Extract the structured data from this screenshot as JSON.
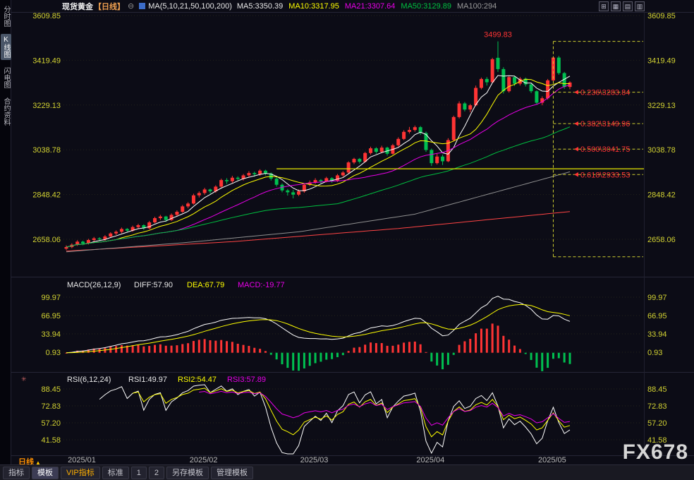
{
  "title_bar": {
    "symbol": "现货黄金",
    "period": "【日线】",
    "ma_summary": "MA(5,10,21,50,100,200)",
    "ma_values": [
      {
        "label": "MA5:3350.39",
        "color": "#e8e8e8"
      },
      {
        "label": "MA10:3317.95",
        "color": "#ffff00"
      },
      {
        "label": "MA21:3307.64",
        "color": "#e800e8"
      },
      {
        "label": "MA50:3129.89",
        "color": "#00c040"
      },
      {
        "label": "MA100:294",
        "color": "#9a9a9a"
      }
    ],
    "window_icons": [
      {
        "name": "layout-single-icon",
        "glyph": "⊞"
      },
      {
        "name": "layout-grid-icon",
        "glyph": "▦"
      },
      {
        "name": "layout-rows-icon",
        "glyph": "▤"
      },
      {
        "name": "layout-columns-icon",
        "glyph": "▥"
      }
    ]
  },
  "sidebar": {
    "items": [
      {
        "label": "分时图",
        "active": false
      },
      {
        "label": "K线图",
        "active": true
      },
      {
        "label": "闪电图",
        "active": false
      },
      {
        "label": "合约资料",
        "active": false
      }
    ]
  },
  "chart_data": {
    "type": "candlestick",
    "symbol": "现货黄金",
    "interval": "日线",
    "price_axis": [
      3609.85,
      3419.49,
      3229.13,
      3038.78,
      2848.42,
      2658.06
    ],
    "up_color": "#ff3434",
    "down_color": "#00c050",
    "months": [
      {
        "label": "2025/01",
        "index": 0
      },
      {
        "label": "2025/02",
        "index": 22
      },
      {
        "label": "2025/03",
        "index": 42
      },
      {
        "label": "2025/04",
        "index": 63
      },
      {
        "label": "2025/05",
        "index": 85
      }
    ],
    "candles": [
      [
        2618,
        2632,
        2612,
        2625
      ],
      [
        2625,
        2641,
        2620,
        2635
      ],
      [
        2635,
        2654,
        2630,
        2648
      ],
      [
        2648,
        2652,
        2633,
        2640
      ],
      [
        2640,
        2660,
        2636,
        2655
      ],
      [
        2655,
        2668,
        2648,
        2662
      ],
      [
        2662,
        2667,
        2650,
        2658
      ],
      [
        2658,
        2676,
        2652,
        2670
      ],
      [
        2670,
        2688,
        2665,
        2683
      ],
      [
        2683,
        2696,
        2676,
        2690
      ],
      [
        2690,
        2708,
        2684,
        2702
      ],
      [
        2702,
        2706,
        2688,
        2695
      ],
      [
        2695,
        2716,
        2690,
        2710
      ],
      [
        2710,
        2724,
        2702,
        2718
      ],
      [
        2718,
        2722,
        2698,
        2705
      ],
      [
        2705,
        2736,
        2700,
        2730
      ],
      [
        2730,
        2754,
        2726,
        2748
      ],
      [
        2748,
        2762,
        2740,
        2755
      ],
      [
        2755,
        2758,
        2732,
        2740
      ],
      [
        2740,
        2768,
        2736,
        2762
      ],
      [
        2762,
        2781,
        2756,
        2775
      ],
      [
        2775,
        2804,
        2770,
        2798
      ],
      [
        2798,
        2816,
        2790,
        2810
      ],
      [
        2810,
        2852,
        2806,
        2845
      ],
      [
        2845,
        2862,
        2836,
        2855
      ],
      [
        2855,
        2877,
        2848,
        2870
      ],
      [
        2870,
        2874,
        2852,
        2862
      ],
      [
        2862,
        2888,
        2856,
        2882
      ],
      [
        2882,
        2916,
        2878,
        2910
      ],
      [
        2910,
        2918,
        2894,
        2905
      ],
      [
        2905,
        2928,
        2898,
        2920
      ],
      [
        2920,
        2926,
        2906,
        2915
      ],
      [
        2915,
        2936,
        2908,
        2930
      ],
      [
        2930,
        2948,
        2922,
        2940
      ],
      [
        2940,
        2946,
        2924,
        2935
      ],
      [
        2935,
        2956,
        2928,
        2950
      ],
      [
        2950,
        2954,
        2930,
        2938
      ],
      [
        2938,
        2942,
        2908,
        2916
      ],
      [
        2916,
        2922,
        2882,
        2890
      ],
      [
        2890,
        2896,
        2858,
        2866
      ],
      [
        2866,
        2872,
        2844,
        2858
      ],
      [
        2858,
        2868,
        2832,
        2848
      ],
      [
        2848,
        2870,
        2842,
        2862
      ],
      [
        2862,
        2896,
        2856,
        2890
      ],
      [
        2890,
        2908,
        2884,
        2900
      ],
      [
        2900,
        2918,
        2894,
        2910
      ],
      [
        2910,
        2914,
        2896,
        2905
      ],
      [
        2905,
        2924,
        2900,
        2918
      ],
      [
        2918,
        2922,
        2898,
        2908
      ],
      [
        2908,
        2936,
        2902,
        2930
      ],
      [
        2930,
        2948,
        2924,
        2942
      ],
      [
        2942,
        2990,
        2938,
        2985
      ],
      [
        2985,
        3005,
        2978,
        3000
      ],
      [
        3000,
        3004,
        2980,
        2988
      ],
      [
        2988,
        3030,
        2984,
        3025
      ],
      [
        3025,
        3052,
        3018,
        3045
      ],
      [
        3045,
        3050,
        3022,
        3030
      ],
      [
        3030,
        3056,
        3024,
        3048
      ],
      [
        3048,
        3052,
        3014,
        3022
      ],
      [
        3022,
        3064,
        3018,
        3058
      ],
      [
        3058,
        3092,
        3052,
        3085
      ],
      [
        3085,
        3122,
        3080,
        3115
      ],
      [
        3115,
        3136,
        3108,
        3123
      ],
      [
        3123,
        3142,
        3116,
        3135
      ],
      [
        3135,
        3140,
        3102,
        3110
      ],
      [
        3110,
        3116,
        3030,
        3038
      ],
      [
        3038,
        3044,
        2970,
        2982
      ],
      [
        2982,
        3022,
        2976,
        3010
      ],
      [
        3010,
        3018,
        2974,
        2990
      ],
      [
        2990,
        3088,
        2986,
        3080
      ],
      [
        3080,
        3184,
        3076,
        3178
      ],
      [
        3178,
        3245,
        3172,
        3236
      ],
      [
        3236,
        3242,
        3202,
        3210
      ],
      [
        3210,
        3234,
        3198,
        3228
      ],
      [
        3228,
        3312,
        3224,
        3302
      ],
      [
        3302,
        3346,
        3296,
        3340
      ],
      [
        3340,
        3348,
        3312,
        3326
      ],
      [
        3326,
        3430,
        3322,
        3424
      ],
      [
        3430,
        3499.83,
        3370,
        3382
      ],
      [
        3382,
        3390,
        3278,
        3288
      ],
      [
        3288,
        3352,
        3282,
        3348
      ],
      [
        3348,
        3354,
        3310,
        3320
      ],
      [
        3320,
        3348,
        3312,
        3341
      ],
      [
        3341,
        3346,
        3308,
        3317
      ],
      [
        3317,
        3322,
        3280,
        3288
      ],
      [
        3288,
        3292,
        3232,
        3239
      ],
      [
        3239,
        3266,
        3228,
        3258
      ],
      [
        3258,
        3340,
        3252,
        3334
      ],
      [
        3334,
        3436,
        3328,
        3431
      ],
      [
        3431,
        3438,
        3358,
        3365
      ],
      [
        3365,
        3370,
        3298,
        3306
      ],
      [
        3306,
        3330,
        3296,
        3325
      ]
    ],
    "ma": {
      "periods": [
        5,
        10,
        21,
        50
      ],
      "colors": [
        "#ffffff",
        "#ffff00",
        "#e800e8",
        "#00c040"
      ],
      "ma100_color": "#909090",
      "ma200_color": "#ff4444",
      "ma100_anchors": [
        [
          0,
          2605
        ],
        [
          22,
          2645
        ],
        [
          42,
          2690
        ],
        [
          63,
          2765
        ],
        [
          91,
          2945
        ]
      ],
      "ma200_anchors": [
        [
          0,
          2608
        ],
        [
          30,
          2648
        ],
        [
          60,
          2704
        ],
        [
          91,
          2776
        ]
      ]
    },
    "high_marker": {
      "label": "3499.83",
      "value": 3499.83,
      "index": 78
    },
    "fib": {
      "color": "#cfcf30",
      "label_color": "#ff3434",
      "top": 3499.83,
      "bottom": 2583.67,
      "vline_index": 88,
      "levels": [
        {
          "label": "0.236\\3283.84",
          "value": 3283.84
        },
        {
          "label": "0.382\\3149.96",
          "value": 3149.96
        },
        {
          "label": "0.500\\3041.75",
          "value": 3041.75
        },
        {
          "label": "0.618\\2933.53",
          "value": 2933.53
        }
      ]
    },
    "hline": {
      "value": 2958,
      "start_index": 38,
      "color": "#e8e800"
    },
    "macd": {
      "header": "MACD(26,12,9)",
      "diff_label": "DIFF:57.90",
      "dea_label": "DEA:67.79",
      "macd_label": "MACD:-19.77",
      "axis": [
        99.97,
        66.95,
        33.94,
        0.93
      ],
      "params": [
        26,
        12,
        9
      ]
    },
    "rsi": {
      "header": "RSI(6,12,24)",
      "labels": [
        "RSI1:49.97",
        "RSI2:54.47",
        "RSI3:57.89"
      ],
      "axis": [
        88.45,
        72.83,
        57.2,
        41.58
      ],
      "periods": [
        6,
        12,
        24
      ]
    }
  },
  "bottom": {
    "period_label": "日线",
    "tabs": [
      {
        "label": "指标",
        "style": "plain"
      },
      {
        "label": "模板",
        "style": "active"
      },
      {
        "label": "VIP指标",
        "style": "vip"
      },
      {
        "label": "标准",
        "style": "plain"
      },
      {
        "label": "1",
        "style": "plain"
      },
      {
        "label": "2",
        "style": "plain"
      },
      {
        "label": "另存模板",
        "style": "plain"
      },
      {
        "label": "管理模板",
        "style": "plain"
      }
    ]
  },
  "watermark": "FX678"
}
